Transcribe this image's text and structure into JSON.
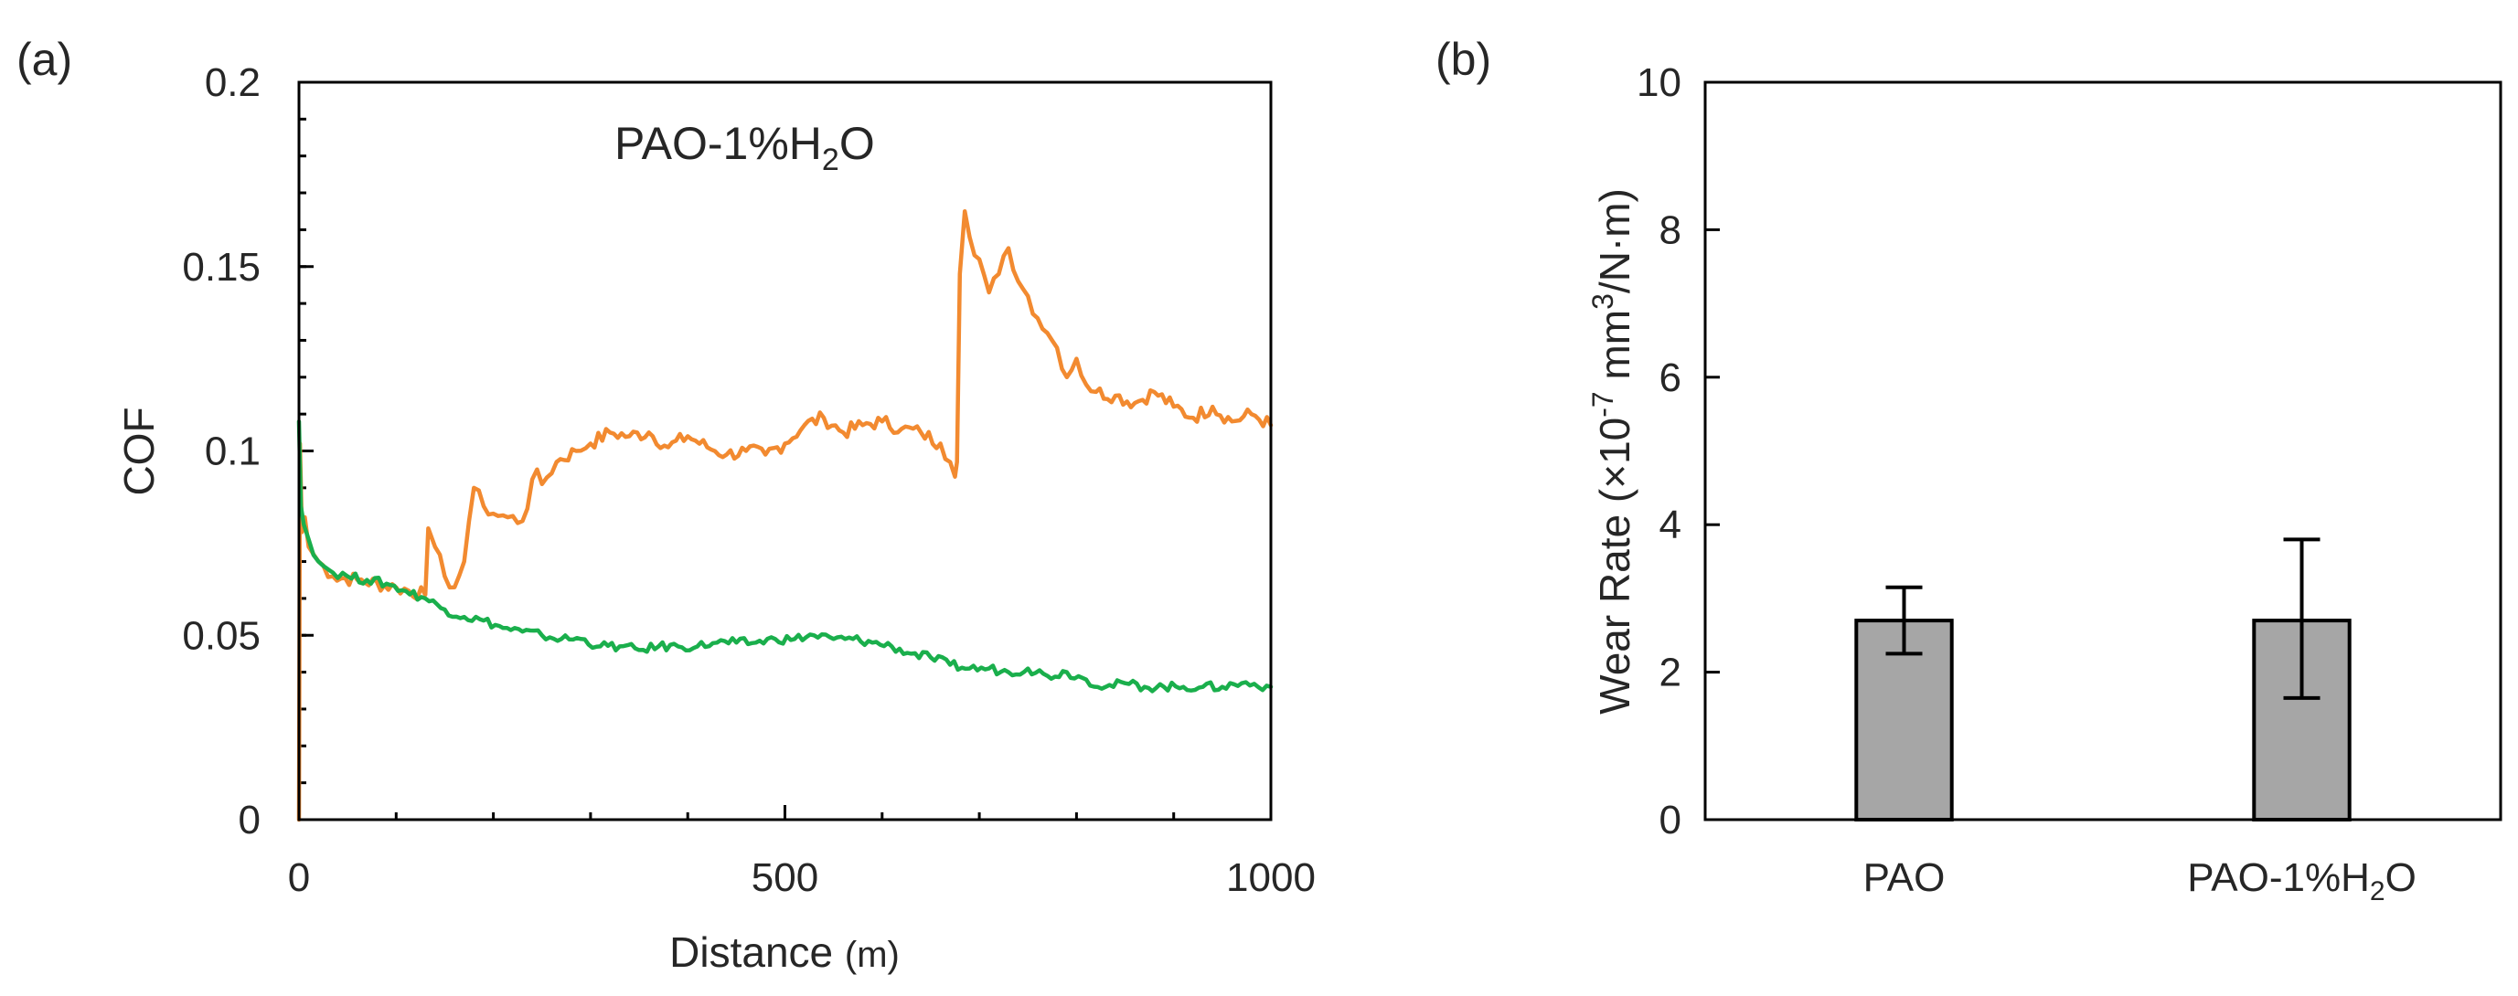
{
  "chart_data": [
    {
      "panel": "(a)",
      "type": "line",
      "title": "",
      "annotation": {
        "prefix": "PAO-1%H",
        "sub": "2",
        "suffix": "O"
      },
      "xlabel": {
        "main": "Distance",
        "unit": "(m)"
      },
      "ylabel": "COF",
      "xlim": [
        0,
        1000
      ],
      "ylim": [
        0,
        0.2
      ],
      "x_ticks": [
        0,
        500,
        1000
      ],
      "x_tick_labels": [
        "0",
        "500",
        "1000"
      ],
      "y_ticks": [
        0,
        0.05,
        0.1,
        0.15,
        0.2
      ],
      "y_tick_labels": [
        "0",
        "0.05",
        "0.1",
        "0.15",
        "0.2"
      ],
      "grid": false,
      "series": [
        {
          "name": "PAO-1%H2O",
          "color": "#f28a30",
          "x": [
            0,
            1,
            3,
            6,
            10,
            20,
            35,
            60,
            100,
            130,
            133,
            140,
            150,
            160,
            170,
            175,
            180,
            190,
            200,
            215,
            230,
            245,
            250,
            265,
            285,
            300,
            320,
            340,
            360,
            380,
            400,
            420,
            440,
            460,
            480,
            500,
            520,
            540,
            560,
            580,
            600,
            620,
            640,
            660,
            670,
            675,
            677,
            680,
            685,
            690,
            700,
            710,
            720,
            730,
            740,
            750,
            760,
            770,
            780,
            790,
            800,
            810,
            820,
            840,
            860,
            880,
            900,
            920,
            940,
            960,
            980,
            1000
          ],
          "values": [
            0.0,
            0.102,
            0.078,
            0.082,
            0.074,
            0.07,
            0.066,
            0.065,
            0.063,
            0.061,
            0.079,
            0.074,
            0.066,
            0.063,
            0.07,
            0.081,
            0.09,
            0.085,
            0.083,
            0.082,
            0.081,
            0.095,
            0.091,
            0.097,
            0.1,
            0.102,
            0.105,
            0.104,
            0.105,
            0.101,
            0.104,
            0.101,
            0.099,
            0.1,
            0.099,
            0.102,
            0.107,
            0.109,
            0.105,
            0.107,
            0.108,
            0.106,
            0.105,
            0.102,
            0.097,
            0.093,
            0.097,
            0.148,
            0.165,
            0.158,
            0.152,
            0.143,
            0.148,
            0.155,
            0.146,
            0.142,
            0.136,
            0.132,
            0.128,
            0.12,
            0.125,
            0.118,
            0.116,
            0.115,
            0.113,
            0.116,
            0.112,
            0.109,
            0.112,
            0.108,
            0.11,
            0.107
          ]
        },
        {
          "name": "PAO",
          "color": "#1aaf4c",
          "x": [
            0,
            2,
            5,
            10,
            20,
            35,
            50,
            70,
            90,
            110,
            130,
            150,
            170,
            190,
            210,
            230,
            250,
            270,
            290,
            310,
            330,
            350,
            370,
            390,
            410,
            430,
            450,
            470,
            490,
            510,
            530,
            550,
            570,
            590,
            610,
            630,
            650,
            670,
            690,
            710,
            730,
            750,
            770,
            790,
            810,
            830,
            850,
            870,
            890,
            910,
            930,
            950,
            970,
            1000
          ],
          "values": [
            0.108,
            0.085,
            0.08,
            0.076,
            0.07,
            0.067,
            0.066,
            0.065,
            0.064,
            0.062,
            0.06,
            0.057,
            0.055,
            0.054,
            0.052,
            0.051,
            0.05,
            0.049,
            0.049,
            0.047,
            0.047,
            0.046,
            0.047,
            0.047,
            0.047,
            0.048,
            0.048,
            0.048,
            0.049,
            0.049,
            0.05,
            0.049,
            0.049,
            0.048,
            0.047,
            0.045,
            0.044,
            0.042,
            0.041,
            0.041,
            0.04,
            0.041,
            0.039,
            0.04,
            0.038,
            0.036,
            0.037,
            0.036,
            0.036,
            0.036,
            0.036,
            0.036,
            0.037,
            0.036
          ]
        }
      ]
    },
    {
      "panel": "(b)",
      "type": "bar",
      "title": "",
      "categories": [
        {
          "prefix": "PAO",
          "sub": "",
          "suffix": ""
        },
        {
          "prefix": "PAO-1%H",
          "sub": "2",
          "suffix": "O"
        }
      ],
      "values": [
        2.7,
        2.7
      ],
      "error_low": [
        2.25,
        1.65
      ],
      "error_high": [
        3.15,
        3.8
      ],
      "bar_color": "#a6a6a6",
      "ylabel": {
        "main": "Wear Rate (×10",
        "exp1": "-7",
        "mid": " mm",
        "exp2": "3",
        "end": "/N·m)"
      },
      "ylim": [
        0,
        10
      ],
      "y_ticks": [
        0,
        2,
        4,
        6,
        8,
        10
      ],
      "y_tick_labels": [
        "0",
        "2",
        "4",
        "6",
        "8",
        "10"
      ],
      "grid": false
    }
  ]
}
